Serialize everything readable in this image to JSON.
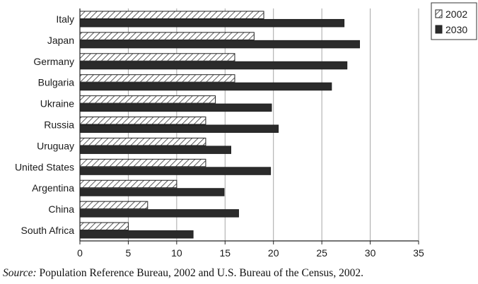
{
  "chart_data": {
    "type": "bar",
    "orientation": "horizontal",
    "categories": [
      "Italy",
      "Japan",
      "Germany",
      "Bulgaria",
      "Ukraine",
      "Russia",
      "Uruguay",
      "United States",
      "Argentina",
      "China",
      "South Africa"
    ],
    "series": [
      {
        "name": "2002",
        "values": [
          19,
          18,
          16,
          16,
          14,
          13,
          13,
          13,
          10,
          7,
          5
        ],
        "pattern": "diagonal-hatch",
        "color": "#ffffff"
      },
      {
        "name": "2030",
        "values": [
          27.3,
          28.9,
          27.6,
          26,
          19.8,
          20.5,
          15.6,
          19.7,
          14.9,
          16.4,
          11.7
        ],
        "pattern": "solid",
        "color": "#2b2b2b"
      }
    ],
    "xlim": [
      0,
      35
    ],
    "xticks": [
      "0",
      "5",
      "10",
      "15",
      "20",
      "25",
      "30",
      "35"
    ],
    "grid": "vertical",
    "legend": "top-right"
  },
  "caption": {
    "source_label": "Source:",
    "text": " Population Reference Bureau, 2002 and U.S. Bureau of the Census, 2002."
  }
}
